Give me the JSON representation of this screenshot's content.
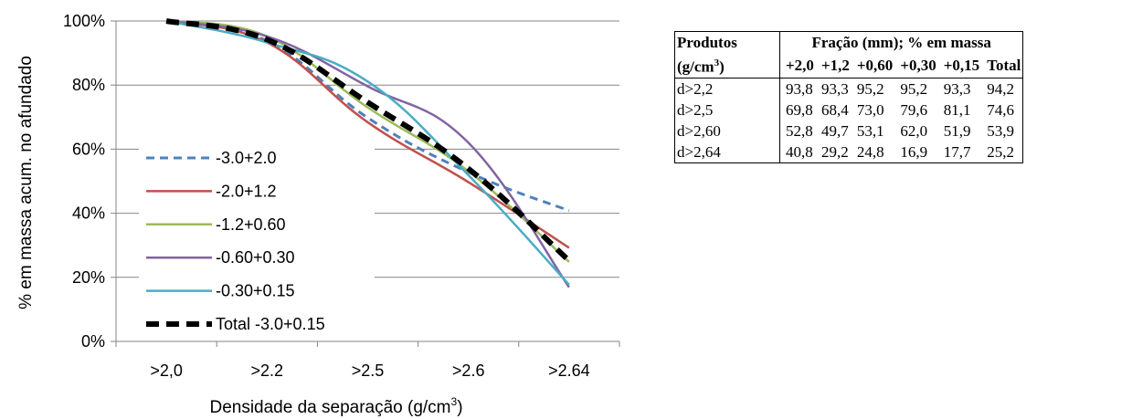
{
  "chart_data": {
    "type": "line",
    "ylabel": "% em massa acum. no afundado",
    "xlabel_main": "Densidade da separação (g/cm",
    "xlabel_sup": "3",
    "xlabel_close": ")",
    "categories": [
      ">2,0",
      ">2.2",
      ">2.5",
      ">2.6",
      ">2.64"
    ],
    "ylim": [
      0,
      100
    ],
    "y_ticks": [
      0,
      20,
      40,
      60,
      80,
      100
    ],
    "y_tick_labels": [
      "0%",
      "20%",
      "40%",
      "60%",
      "80%",
      "100%"
    ],
    "grid": "horizontal",
    "legend_position": "left-inside",
    "series": [
      {
        "name": "-3.0+2.0",
        "color": "#4f81bd",
        "dash": "dashed",
        "values": [
          100,
          93.8,
          69.8,
          52.8,
          40.8
        ]
      },
      {
        "name": "-2.0+1.2",
        "color": "#c0504d",
        "dash": "solid",
        "values": [
          100,
          93.3,
          68.4,
          49.7,
          29.2
        ]
      },
      {
        "name": "-1.2+0.60",
        "color": "#9bbb59",
        "dash": "solid",
        "values": [
          100,
          95.2,
          73.0,
          53.1,
          24.8
        ]
      },
      {
        "name": "-0.60+0.30",
        "color": "#8064a2",
        "dash": "solid",
        "values": [
          100,
          95.2,
          79.6,
          62.0,
          16.9
        ]
      },
      {
        "name": "-0.30+0.15",
        "color": "#4bacc6",
        "dash": "solid",
        "values": [
          100,
          93.3,
          81.1,
          51.9,
          17.7
        ]
      },
      {
        "name": "Total -3.0+0.15",
        "color": "#000000",
        "dash": "bold-dashed",
        "values": [
          100,
          94.2,
          74.6,
          53.9,
          25.2
        ]
      }
    ]
  },
  "table": {
    "header_col": "Produtos",
    "header_unit_main": "(g/cm",
    "header_unit_sup": "3",
    "header_unit_close": ")",
    "header_group": "Fração (mm); % em massa",
    "columns": [
      "+2,0",
      "+1,2",
      "+0,60",
      "+0,30",
      "+0,15",
      "Total"
    ],
    "rows": [
      {
        "label": "d>2,2",
        "values": [
          "93,8",
          "93,3",
          "95,2",
          "95,2",
          "93,3",
          "94,2"
        ]
      },
      {
        "label": "d>2,5",
        "values": [
          "69,8",
          "68,4",
          "73,0",
          "79,6",
          "81,1",
          "74,6"
        ]
      },
      {
        "label": "d>2,60",
        "values": [
          "52,8",
          "49,7",
          "53,1",
          "62,0",
          "51,9",
          "53,9"
        ]
      },
      {
        "label": "d>2,64",
        "values": [
          "40,8",
          "29,2",
          "24,8",
          "16,9",
          "17,7",
          "25,2"
        ]
      }
    ]
  }
}
